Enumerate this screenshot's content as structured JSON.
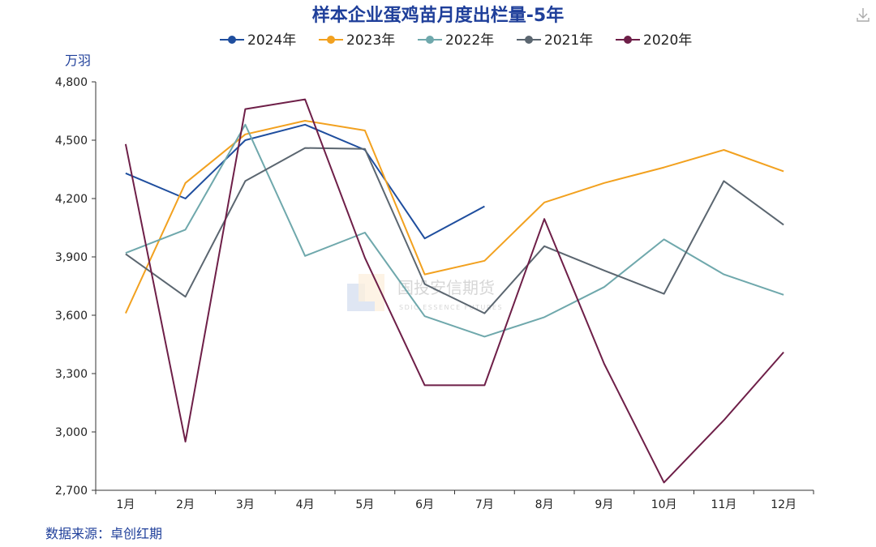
{
  "colors": {
    "title": "#1f3f9a",
    "axis": "#333333",
    "source": "#1f3f9a",
    "unit": "#1f3f9a"
  },
  "icons": {
    "download": "download-icon"
  },
  "source_text": "数据来源：卓创红期",
  "watermark": {
    "name": "国投安信期货",
    "sub": "SDIC ESSENCE FUTURES"
  },
  "chart_data": {
    "type": "line",
    "title": "样本企业蛋鸡苗月度出栏量-5年",
    "ylabel": "万羽",
    "xlabel": "",
    "categories": [
      "1月",
      "2月",
      "3月",
      "4月",
      "5月",
      "6月",
      "7月",
      "8月",
      "9月",
      "10月",
      "11月",
      "12月"
    ],
    "ylim": [
      2700,
      4800
    ],
    "yticks": [
      2700,
      3000,
      3300,
      3600,
      3900,
      4200,
      4500,
      4800
    ],
    "ytick_labels": [
      "2,700",
      "3,000",
      "3,300",
      "3,600",
      "3,900",
      "4,200",
      "4,500",
      "4,800"
    ],
    "legend_position": "top-center",
    "grid": false,
    "series": [
      {
        "name": "2024年",
        "color": "#1f4e9e",
        "values": [
          4330,
          4200,
          4500,
          4580,
          4450,
          3995,
          4160,
          null,
          null,
          null,
          null,
          null
        ]
      },
      {
        "name": "2023年",
        "color": "#f2a11f",
        "values": [
          3610,
          4280,
          4530,
          4600,
          4550,
          3810,
          3880,
          4180,
          4280,
          4360,
          4450,
          4340
        ]
      },
      {
        "name": "2022年",
        "color": "#6fa8ac",
        "values": [
          3920,
          4040,
          4580,
          3905,
          4025,
          3595,
          3490,
          3590,
          3745,
          3990,
          3810,
          3705
        ]
      },
      {
        "name": "2021年",
        "color": "#5b6670",
        "values": [
          3915,
          3695,
          4290,
          4460,
          4455,
          3760,
          3610,
          3955,
          3830,
          3710,
          4290,
          4065
        ]
      },
      {
        "name": "2020年",
        "color": "#6e1f48",
        "values": [
          4480,
          2950,
          4660,
          4710,
          3895,
          3240,
          3240,
          4095,
          3350,
          2740,
          3060,
          3410
        ]
      }
    ]
  }
}
